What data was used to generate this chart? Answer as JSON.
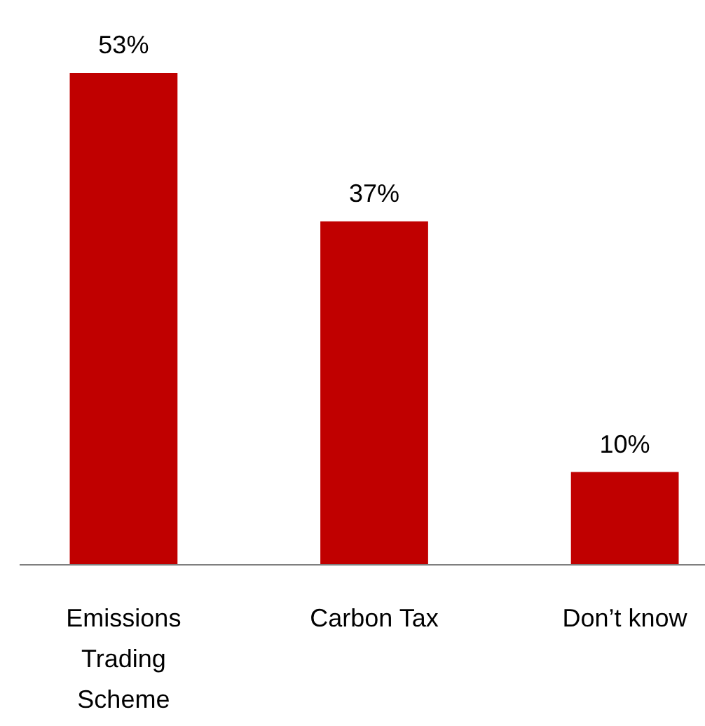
{
  "chart_data": {
    "type": "bar",
    "categories": [
      "Emissions Trading Scheme",
      "Carbon Tax",
      "Don’t know"
    ],
    "values": [
      53,
      37,
      10
    ],
    "color": "#c00000",
    "value_labels": [
      "53%",
      "37%",
      "10%"
    ]
  }
}
